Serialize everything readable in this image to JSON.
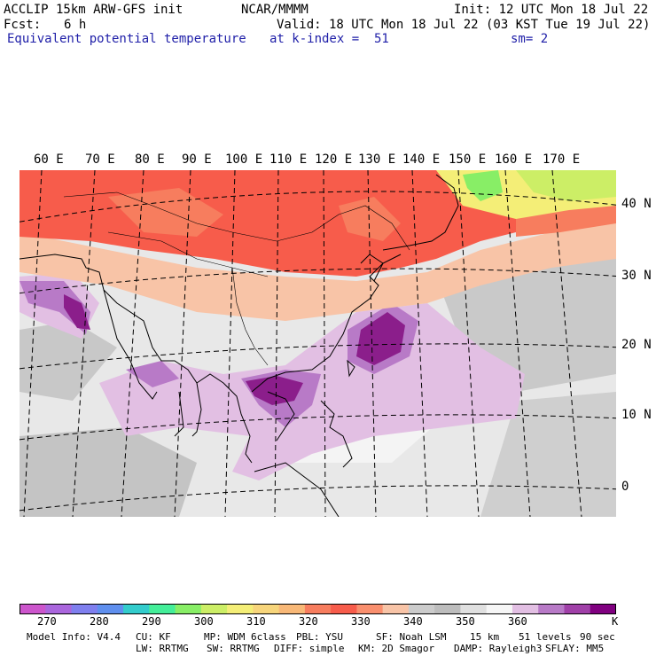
{
  "header": {
    "model_line": "ACCLIP 15km ARW-GFS init",
    "source": "NCAR/MMMM",
    "init": "Init: 12 UTC Mon 18 Jul 22",
    "fcst_label": "Fcst:",
    "fcst_value": "6 h",
    "valid": "Valid: 18 UTC Mon 18 Jul 22 (03 KST Tue 19 Jul 22)",
    "field": "Equivalent potential temperature",
    "level": "at k-index =  51",
    "smoothing": "sm= 2"
  },
  "map": {
    "lon_labels": [
      "60 E",
      "70 E",
      "80 E",
      "90 E",
      "100 E",
      "110 E",
      "120 E",
      "130 E",
      "140 E",
      "150 E",
      "160 E",
      "170 E"
    ],
    "lat_labels": [
      "40 N",
      "30 N",
      "20 N",
      "10 N",
      "0"
    ]
  },
  "colorbar": {
    "unit": "K",
    "ticks": [
      "270",
      "280",
      "290",
      "300",
      "310",
      "320",
      "330",
      "340",
      "350",
      "360"
    ],
    "colors": [
      "#cc55cc",
      "#aa66dd",
      "#7f7fee",
      "#5f8fee",
      "#33cccc",
      "#44ee99",
      "#88ee66",
      "#ccee66",
      "#f4ee77",
      "#f7d57b",
      "#f8b877",
      "#f77d5e",
      "#f75c4b",
      "#f98f6e",
      "#f8c4a7",
      "#cccccc",
      "#bdbdbd",
      "#e0e0e0",
      "#f6f6f6",
      "#e2bfe3",
      "#b87ac7",
      "#a040a8",
      "#800080"
    ]
  },
  "footer": {
    "model_info": "Model Info: V4.4",
    "cu": "CU: KF",
    "mp": "MP: WDM 6class",
    "pbl": "PBL: YSU",
    "sf": "SF: Noah LSM",
    "res": "15 km",
    "levels": "51 levels",
    "dt": "90 sec",
    "lw": "LW: RRTMG",
    "sw": "SW: RRTMG",
    "diff": "DIFF: simple",
    "km": "KM: 2D Smagor",
    "damp": "DAMP: Rayleigh3",
    "sflay": "SFLAY: MM5"
  }
}
